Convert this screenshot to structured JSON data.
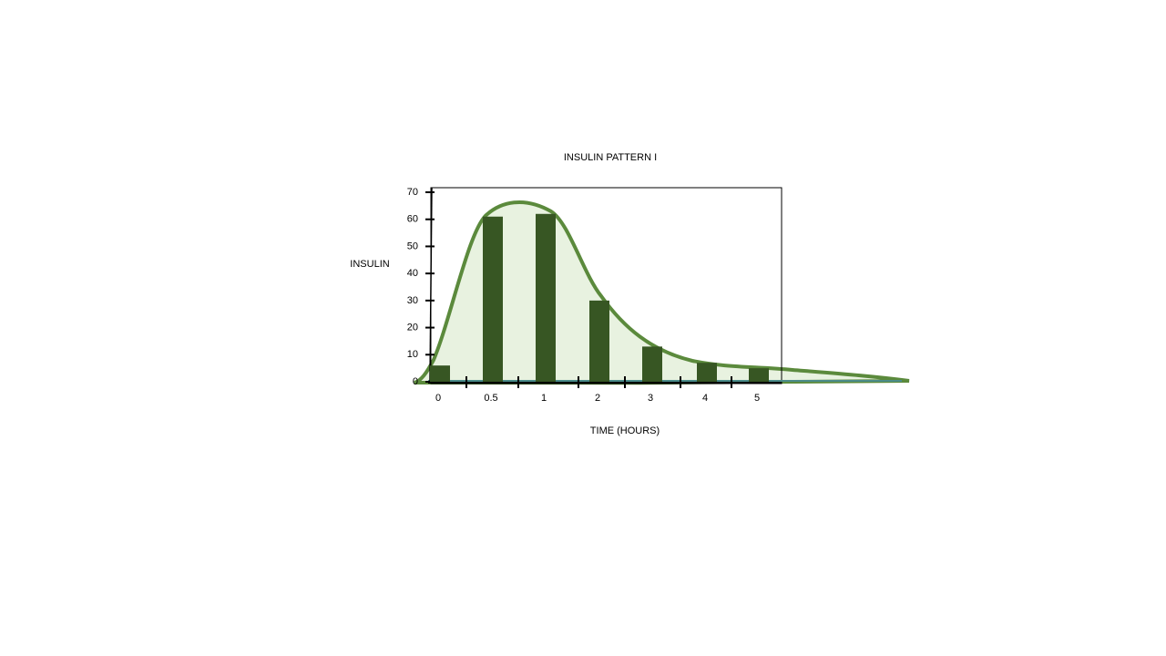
{
  "chart_data": {
    "type": "bar",
    "title": "INSULIN PATTERN I",
    "y_label": "INSULIN",
    "x_label": "TIME (HOURS)",
    "categories": [
      "0",
      "0.5",
      "1",
      "2",
      "3",
      "4",
      "5"
    ],
    "values": [
      6,
      61,
      62,
      30,
      13,
      7,
      5
    ],
    "color": "#375623",
    "ylim": [
      0,
      70
    ],
    "yticks": [
      0,
      10,
      20,
      30,
      40,
      50,
      60,
      70
    ],
    "grid": false
  }
}
